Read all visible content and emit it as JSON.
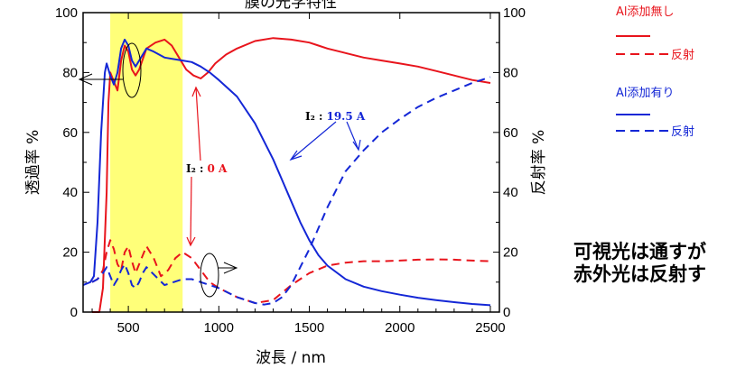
{
  "chart_data": {
    "type": "line",
    "title": "膜の光学特性",
    "xlabel": "波長 / nm",
    "ylabel_left": "透過率 %",
    "ylabel_right": "反射率 %",
    "xlim": [
      250,
      2550
    ],
    "ylim": [
      0,
      100
    ],
    "xticks": [
      "500",
      "1000",
      "1500",
      "2000",
      "2500"
    ],
    "yticks": [
      "0",
      "20",
      "40",
      "60",
      "80",
      "100"
    ],
    "highlight_band": [
      400,
      800
    ],
    "series": [
      {
        "name": "Al添加無し",
        "kind": "transmittance",
        "color": "#e8141c",
        "dash": false,
        "x": [
          300,
          340,
          360,
          380,
          390,
          400,
          420,
          440,
          460,
          480,
          500,
          520,
          540,
          560,
          600,
          650,
          700,
          740,
          780,
          820,
          860,
          900,
          940,
          980,
          1040,
          1100,
          1200,
          1300,
          1400,
          1500,
          1550,
          1600,
          1700,
          1800,
          1900,
          2000,
          2100,
          2200,
          2300,
          2400,
          2500
        ],
        "y": [
          0,
          0,
          8,
          40,
          70,
          80,
          77,
          74,
          84,
          89,
          87,
          81,
          79,
          81,
          88,
          90,
          91,
          89,
          85,
          81,
          79,
          78,
          80,
          83,
          86,
          88,
          90.5,
          91.5,
          91,
          90,
          89,
          88,
          86.5,
          85,
          84,
          83,
          82,
          80.5,
          79,
          77.5,
          76.5
        ]
      },
      {
        "name": "反射",
        "kind": "reflectance",
        "color": "#e8141c",
        "dash": true,
        "x": [
          300,
          330,
          360,
          380,
          400,
          420,
          440,
          460,
          480,
          500,
          520,
          540,
          560,
          600,
          640,
          680,
          720,
          760,
          800,
          850,
          900,
          950,
          1000,
          1100,
          1200,
          1300,
          1400,
          1500,
          1600,
          1700,
          1800,
          1900,
          2000,
          2100,
          2200,
          2300,
          2400,
          2500
        ],
        "y": [
          10,
          11,
          14,
          20,
          24,
          21,
          16,
          14,
          20,
          22,
          17,
          13,
          16,
          22,
          18,
          12,
          14,
          18,
          20,
          18,
          14,
          10,
          8,
          5,
          3,
          4,
          9,
          13,
          15.5,
          16.5,
          17,
          17,
          17.2,
          17.5,
          17.6,
          17.5,
          17.2,
          17
        ]
      },
      {
        "name": "Al添加有り",
        "kind": "transmittance",
        "color": "#1427d6",
        "dash": false,
        "x": [
          250,
          290,
          310,
          330,
          350,
          370,
          380,
          400,
          420,
          440,
          460,
          480,
          500,
          520,
          540,
          560,
          600,
          640,
          700,
          750,
          800,
          850,
          900,
          950,
          1000,
          1100,
          1200,
          1300,
          1350,
          1400,
          1450,
          1500,
          1550,
          1600,
          1700,
          1800,
          1900,
          2000,
          2100,
          2200,
          2300,
          2400,
          2500
        ],
        "y": [
          9,
          10,
          12,
          30,
          60,
          80,
          83,
          79,
          76,
          80,
          88,
          91,
          89,
          84,
          82,
          84,
          88,
          87,
          85,
          84.5,
          84,
          83.5,
          82,
          80,
          77.5,
          72,
          63,
          51,
          44,
          37,
          30,
          24,
          19,
          15.5,
          11,
          8.5,
          7,
          5.8,
          4.8,
          4,
          3.3,
          2.7,
          2.3
        ]
      },
      {
        "name": "反射",
        "kind": "reflectance",
        "color": "#1427d6",
        "dash": true,
        "x": [
          300,
          330,
          360,
          380,
          400,
          420,
          440,
          460,
          480,
          500,
          520,
          540,
          560,
          580,
          600,
          650,
          700,
          750,
          800,
          850,
          900,
          950,
          1000,
          1100,
          1200,
          1250,
          1300,
          1350,
          1400,
          1450,
          1500,
          1550,
          1600,
          1650,
          1700,
          1800,
          1900,
          2000,
          2100,
          2200,
          2300,
          2400,
          2500
        ],
        "y": [
          10,
          11,
          13,
          15,
          12,
          9,
          11,
          14,
          16,
          13,
          9,
          8,
          10,
          13,
          15,
          12,
          9,
          10,
          11,
          11,
          10,
          9,
          8,
          5,
          3,
          2.5,
          3,
          5,
          9,
          15,
          21,
          28,
          35,
          41,
          47,
          54,
          60,
          64.5,
          68.5,
          71.5,
          74,
          76.5,
          78.5
        ]
      }
    ],
    "annotations": {
      "blue_label_name": "I₂ :",
      "blue_label_value": "19.5 A",
      "red_label_name": "I₂ :",
      "red_label_value": "0 A"
    },
    "legend_position": "right",
    "legend_groups": [
      {
        "title": "Al添加無し",
        "color": "#e8141c",
        "solid_text": "",
        "dashed_text": "反射"
      },
      {
        "title": "Al添加有り",
        "color": "#1427d6",
        "solid_text": "",
        "dashed_text": "反射"
      }
    ]
  },
  "side_note": {
    "line1": "可視光は通すが",
    "line2": "赤外光は反射す"
  }
}
